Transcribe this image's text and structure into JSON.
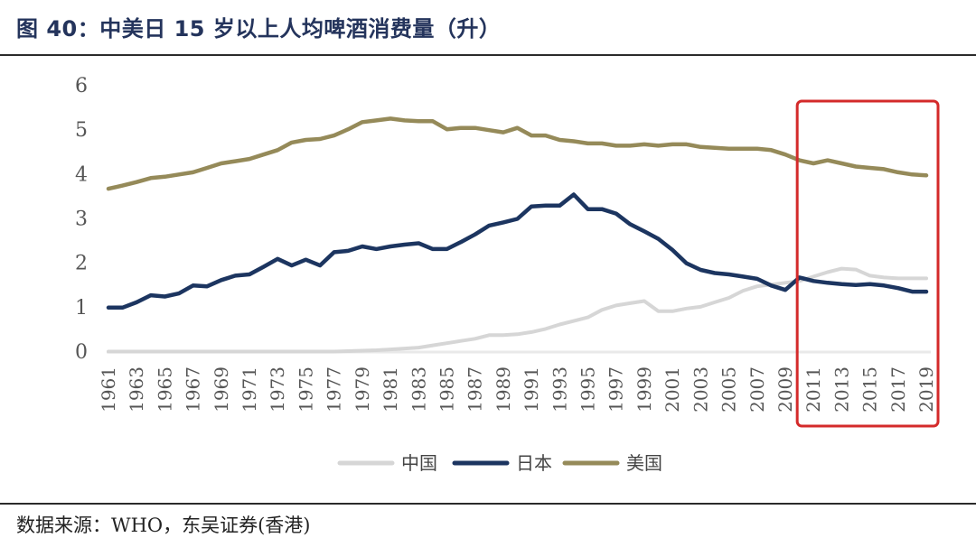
{
  "title": "图 40：中美日 15 岁以上人均啤酒消费量（升）",
  "source": "数据来源：WHO，东吴证券(香港)",
  "colors": {
    "china": "#d6d6d6",
    "japan": "#1c3560",
    "usa": "#958a59",
    "highlight": "#d42a2a"
  },
  "chart_data": {
    "type": "line",
    "title": "中美日 15 岁以上人均啤酒消费量（升）",
    "xlabel": "",
    "ylabel": "",
    "ylim": [
      0,
      6
    ],
    "yticks": [
      "0",
      "1",
      "2",
      "3",
      "4",
      "5",
      "6"
    ],
    "xtick_labels": [
      "1961",
      "1963",
      "1965",
      "1967",
      "1969",
      "1971",
      "1973",
      "1975",
      "1977",
      "1979",
      "1981",
      "1983",
      "1985",
      "1987",
      "1989",
      "1991",
      "1993",
      "1995",
      "1997",
      "1999",
      "2001",
      "2003",
      "2005",
      "2007",
      "2009",
      "2011",
      "2013",
      "2015",
      "2017",
      "2019"
    ],
    "x": [
      1961,
      1962,
      1963,
      1964,
      1965,
      1966,
      1967,
      1968,
      1969,
      1970,
      1971,
      1972,
      1973,
      1974,
      1975,
      1976,
      1977,
      1978,
      1979,
      1980,
      1981,
      1982,
      1983,
      1984,
      1985,
      1986,
      1987,
      1988,
      1989,
      1990,
      1991,
      1992,
      1993,
      1994,
      1995,
      1996,
      1997,
      1998,
      1999,
      2000,
      2001,
      2002,
      2003,
      2004,
      2005,
      2006,
      2007,
      2008,
      2009,
      2010,
      2011,
      2012,
      2013,
      2014,
      2015,
      2016,
      2017,
      2018,
      2019
    ],
    "series": [
      {
        "name": "中国",
        "key": "china",
        "values": [
          0.01,
          0.01,
          0.01,
          0.01,
          0.01,
          0.01,
          0.01,
          0.01,
          0.01,
          0.01,
          0.01,
          0.01,
          0.01,
          0.01,
          0.01,
          0.01,
          0.01,
          0.02,
          0.03,
          0.04,
          0.06,
          0.08,
          0.1,
          0.15,
          0.2,
          0.25,
          0.3,
          0.38,
          0.38,
          0.4,
          0.45,
          0.52,
          0.62,
          0.7,
          0.78,
          0.95,
          1.05,
          1.1,
          1.15,
          0.92,
          0.92,
          0.98,
          1.02,
          1.12,
          1.22,
          1.38,
          1.48,
          1.52,
          1.56,
          1.6,
          1.7,
          1.8,
          1.88,
          1.86,
          1.72,
          1.68,
          1.66,
          1.66,
          1.66
        ]
      },
      {
        "name": "日本",
        "key": "japan",
        "values": [
          1.0,
          1.0,
          1.12,
          1.28,
          1.25,
          1.32,
          1.5,
          1.48,
          1.62,
          1.72,
          1.75,
          1.92,
          2.1,
          1.95,
          2.08,
          1.95,
          2.25,
          2.28,
          2.38,
          2.32,
          2.38,
          2.42,
          2.45,
          2.32,
          2.32,
          2.48,
          2.65,
          2.85,
          2.92,
          3.0,
          3.28,
          3.3,
          3.3,
          3.55,
          3.22,
          3.22,
          3.12,
          2.88,
          2.72,
          2.55,
          2.3,
          2.0,
          1.85,
          1.78,
          1.75,
          1.7,
          1.65,
          1.5,
          1.4,
          1.68,
          1.6,
          1.56,
          1.53,
          1.51,
          1.53,
          1.5,
          1.44,
          1.36,
          1.36
        ]
      },
      {
        "name": "美国",
        "key": "usa",
        "values": [
          3.68,
          3.75,
          3.83,
          3.92,
          3.95,
          4.0,
          4.05,
          4.15,
          4.25,
          4.3,
          4.35,
          4.45,
          4.55,
          4.72,
          4.78,
          4.8,
          4.88,
          5.02,
          5.18,
          5.22,
          5.26,
          5.22,
          5.2,
          5.2,
          5.02,
          5.05,
          5.05,
          5.0,
          4.95,
          5.05,
          4.88,
          4.88,
          4.78,
          4.75,
          4.7,
          4.7,
          4.65,
          4.65,
          4.68,
          4.65,
          4.68,
          4.68,
          4.62,
          4.6,
          4.58,
          4.58,
          4.58,
          4.55,
          4.45,
          4.32,
          4.25,
          4.32,
          4.25,
          4.18,
          4.15,
          4.12,
          4.05,
          4.0,
          3.98
        ]
      }
    ],
    "highlight": {
      "from": 2011,
      "to": 2019,
      "label": "2011–2019"
    },
    "legend": [
      "中国",
      "日本",
      "美国"
    ],
    "legend_position": "bottom-center"
  }
}
